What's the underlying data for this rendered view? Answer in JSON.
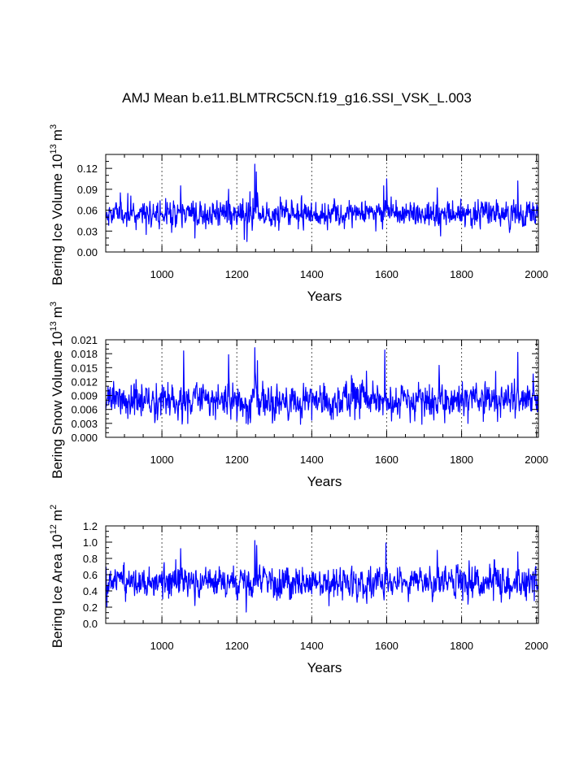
{
  "title": "AMJ Mean b.e11.BLMTRC5CN.f19_g16.SSI_VSK_L.003",
  "line_color": "#0000ff",
  "chart_data": [
    {
      "type": "line",
      "title": "AMJ Mean b.e11.BLMTRC5CN.f19_g16.SSI_VSK_L.003",
      "xlabel": "Years",
      "ylabel_text": "Bering Ice Volume 10",
      "ylabel_exp": "13",
      "ylabel_unit": "m",
      "ylabel_unit_exp": "3",
      "xlim": [
        850,
        2005
      ],
      "ylim": [
        0,
        0.14
      ],
      "xticks": [
        1000,
        1200,
        1400,
        1600,
        1800,
        2000
      ],
      "yticks": [
        0,
        0.03,
        0.06,
        0.09,
        0.12
      ],
      "ytick_labels": [
        "0.00",
        "0.03",
        "0.06",
        "0.09",
        "0.12"
      ],
      "x": [
        850,
        2005
      ],
      "mean": 0.055,
      "noise": 0.009,
      "min": 0.012,
      "max": 0.126,
      "seed": 11,
      "peaks": [
        [
          1248,
          0.126
        ],
        [
          1252,
          0.115
        ],
        [
          1600,
          0.105
        ],
        [
          1592,
          0.095
        ],
        [
          1950,
          0.102
        ],
        [
          1735,
          0.092
        ],
        [
          1050,
          0.095
        ],
        [
          1178,
          0.09
        ],
        [
          1088,
          0.02
        ],
        [
          1220,
          0.018
        ],
        [
          1227,
          0.015
        ]
      ],
      "series": [
        {
          "name": "Bering Ice Volume"
        }
      ]
    },
    {
      "type": "line",
      "xlabel": "Years",
      "ylabel_text": "Bering Snow Volume 10",
      "ylabel_exp": "13",
      "ylabel_unit": "m",
      "ylabel_unit_exp": "3",
      "xlim": [
        850,
        2005
      ],
      "ylim": [
        0,
        0.021
      ],
      "xticks": [
        1000,
        1200,
        1400,
        1600,
        1800,
        2000
      ],
      "yticks": [
        0,
        0.003,
        0.006,
        0.009,
        0.012,
        0.015,
        0.018,
        0.021
      ],
      "ytick_labels": [
        "0.000",
        "0.003",
        "0.006",
        "0.009",
        "0.012",
        "0.015",
        "0.018",
        "0.021"
      ],
      "x": [
        850,
        2005
      ],
      "mean": 0.0078,
      "noise": 0.0018,
      "min": 0.0028,
      "max": 0.0193,
      "seed": 23,
      "peaks": [
        [
          1248,
          0.0193
        ],
        [
          1255,
          0.0165
        ],
        [
          1058,
          0.0186
        ],
        [
          1595,
          0.0188
        ],
        [
          1950,
          0.0183
        ],
        [
          1178,
          0.0178
        ],
        [
          1740,
          0.0155
        ],
        [
          1225,
          0.003
        ],
        [
          1817,
          0.003
        ]
      ],
      "series": [
        {
          "name": "Bering Snow Volume"
        }
      ]
    },
    {
      "type": "line",
      "xlabel": "Years",
      "ylabel_text": "Bering Ice Area 10",
      "ylabel_exp": "12",
      "ylabel_unit": "m",
      "ylabel_unit_exp": "2",
      "xlim": [
        850,
        2005
      ],
      "ylim": [
        0,
        1.2
      ],
      "xticks": [
        1000,
        1200,
        1400,
        1600,
        1800,
        2000
      ],
      "yticks": [
        0,
        0.2,
        0.4,
        0.6,
        0.8,
        1.0,
        1.2
      ],
      "ytick_labels": [
        "0.0",
        "0.2",
        "0.4",
        "0.6",
        "0.8",
        "1.0",
        "1.2"
      ],
      "x": [
        850,
        2005
      ],
      "mean": 0.5,
      "noise": 0.09,
      "min": 0.14,
      "max": 1.02,
      "seed": 37,
      "peaks": [
        [
          1248,
          1.02
        ],
        [
          1253,
          0.96
        ],
        [
          1598,
          0.99
        ],
        [
          1735,
          0.9
        ],
        [
          1950,
          0.88
        ],
        [
          1050,
          0.92
        ],
        [
          853,
          0.2
        ],
        [
          1225,
          0.14
        ],
        [
          1088,
          0.22
        ]
      ],
      "series": [
        {
          "name": "Bering Ice Area"
        }
      ]
    }
  ]
}
